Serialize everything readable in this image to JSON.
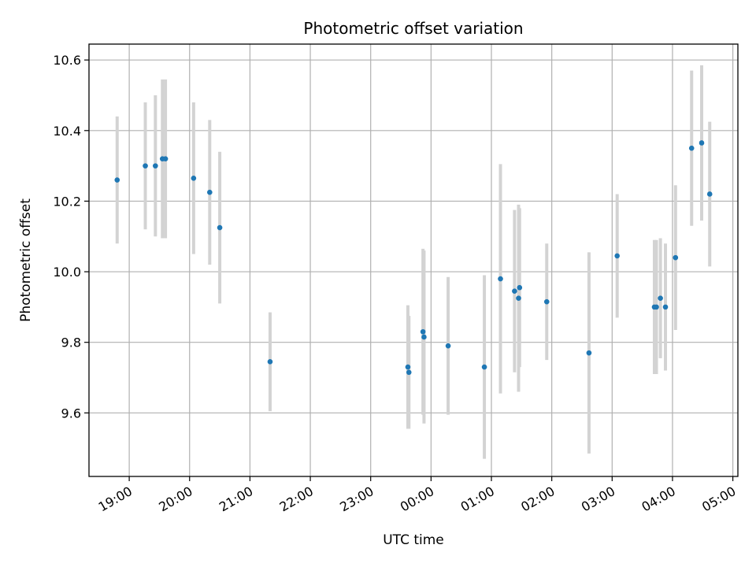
{
  "chart_data": {
    "type": "scatter",
    "title": "Photometric offset variation",
    "xlabel": "UTC time",
    "ylabel": "Photometric offset",
    "xlim": [
      "2000-01-01T18:20",
      "2000-01-02T05:05"
    ],
    "ylim": [
      9.42,
      10.645
    ],
    "xticks": [
      {
        "t": "2000-01-01T19:00",
        "label": "19:00"
      },
      {
        "t": "2000-01-01T20:00",
        "label": "20:00"
      },
      {
        "t": "2000-01-01T21:00",
        "label": "21:00"
      },
      {
        "t": "2000-01-01T22:00",
        "label": "22:00"
      },
      {
        "t": "2000-01-01T23:00",
        "label": "23:00"
      },
      {
        "t": "2000-01-02T00:00",
        "label": "00:00"
      },
      {
        "t": "2000-01-02T01:00",
        "label": "01:00"
      },
      {
        "t": "2000-01-02T02:00",
        "label": "02:00"
      },
      {
        "t": "2000-01-02T03:00",
        "label": "03:00"
      },
      {
        "t": "2000-01-02T04:00",
        "label": "04:00"
      },
      {
        "t": "2000-01-02T05:00",
        "label": "05:00"
      }
    ],
    "yticks": [
      {
        "v": 9.6,
        "label": "9.6"
      },
      {
        "v": 9.8,
        "label": "9.8"
      },
      {
        "v": 10.0,
        "label": "10.0"
      },
      {
        "v": 10.2,
        "label": "10.2"
      },
      {
        "v": 10.4,
        "label": "10.4"
      },
      {
        "v": 10.6,
        "label": "10.6"
      }
    ],
    "grid": true,
    "points": [
      {
        "t": "2000-01-01T18:48",
        "y": 10.26,
        "err": 0.18
      },
      {
        "t": "2000-01-01T19:16",
        "y": 10.3,
        "err": 0.18
      },
      {
        "t": "2000-01-01T19:26",
        "y": 10.3,
        "err": 0.2
      },
      {
        "t": "2000-01-01T19:33",
        "y": 10.32,
        "err": 0.225
      },
      {
        "t": "2000-01-01T19:36",
        "y": 10.32,
        "err": 0.225
      },
      {
        "t": "2000-01-01T20:04",
        "y": 10.265,
        "err": 0.215
      },
      {
        "t": "2000-01-01T20:20",
        "y": 10.225,
        "err": 0.205
      },
      {
        "t": "2000-01-01T20:30",
        "y": 10.125,
        "err": 0.215
      },
      {
        "t": "2000-01-01T21:20",
        "y": 9.745,
        "err": 0.14
      },
      {
        "t": "2000-01-01T23:37",
        "y": 9.73,
        "err": 0.175
      },
      {
        "t": "2000-01-01T23:38",
        "y": 9.715,
        "err": 0.16
      },
      {
        "t": "2000-01-01T23:52",
        "y": 9.83,
        "err": 0.235
      },
      {
        "t": "2000-01-01T23:53",
        "y": 9.815,
        "err": 0.245
      },
      {
        "t": "2000-01-02T00:17",
        "y": 9.79,
        "err": 0.195
      },
      {
        "t": "2000-01-02T00:53",
        "y": 9.73,
        "err": 0.26
      },
      {
        "t": "2000-01-02T01:09",
        "y": 9.98,
        "err": 0.325
      },
      {
        "t": "2000-01-02T01:23",
        "y": 9.945,
        "err": 0.23
      },
      {
        "t": "2000-01-02T01:27",
        "y": 9.925,
        "err": 0.265
      },
      {
        "t": "2000-01-02T01:28",
        "y": 9.955,
        "err": 0.225
      },
      {
        "t": "2000-01-02T01:55",
        "y": 9.915,
        "err": 0.165
      },
      {
        "t": "2000-01-02T02:37",
        "y": 9.77,
        "err": 0.285
      },
      {
        "t": "2000-01-02T03:05",
        "y": 10.045,
        "err": 0.175
      },
      {
        "t": "2000-01-02T03:42",
        "y": 9.9,
        "err": 0.19
      },
      {
        "t": "2000-01-02T03:44",
        "y": 9.9,
        "err": 0.19
      },
      {
        "t": "2000-01-02T03:48",
        "y": 9.925,
        "err": 0.17
      },
      {
        "t": "2000-01-02T03:53",
        "y": 9.9,
        "err": 0.18
      },
      {
        "t": "2000-01-02T04:03",
        "y": 10.04,
        "err": 0.205
      },
      {
        "t": "2000-01-02T04:19",
        "y": 10.35,
        "err": 0.22
      },
      {
        "t": "2000-01-02T04:29",
        "y": 10.365,
        "err": 0.22
      },
      {
        "t": "2000-01-02T04:37",
        "y": 10.22,
        "err": 0.205
      }
    ],
    "colors": {
      "point": "#1f77b4",
      "errorbar": "#d3d3d3",
      "grid": "#b0b0b0",
      "axes": "#000000"
    }
  }
}
